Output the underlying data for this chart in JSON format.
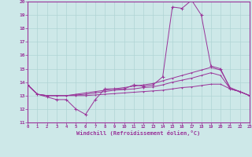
{
  "xlabel": "Windchill (Refroidissement éolien,°C)",
  "xlim": [
    0,
    23
  ],
  "ylim": [
    11,
    20
  ],
  "yticks": [
    11,
    12,
    13,
    14,
    15,
    16,
    17,
    18,
    19,
    20
  ],
  "xticks": [
    0,
    1,
    2,
    3,
    4,
    5,
    6,
    7,
    8,
    9,
    10,
    11,
    12,
    13,
    14,
    15,
    16,
    17,
    18,
    19,
    20,
    21,
    22,
    23
  ],
  "bg_color": "#cde8e8",
  "grid_color": "#b0d4d4",
  "line_color": "#993399",
  "line1_x": [
    0,
    1,
    2,
    3,
    4,
    5,
    6,
    7,
    8,
    9,
    10,
    11,
    12,
    13,
    14,
    15,
    16,
    17,
    18,
    19,
    20,
    21,
    22,
    23
  ],
  "line1_y": [
    13.8,
    13.1,
    12.9,
    12.7,
    12.7,
    12.0,
    11.6,
    12.7,
    13.5,
    13.5,
    13.5,
    13.8,
    13.7,
    13.8,
    14.4,
    19.6,
    19.5,
    20.1,
    19.0,
    15.2,
    15.0,
    13.5,
    13.3,
    13.0
  ],
  "line2_x": [
    0,
    1,
    2,
    3,
    4,
    5,
    6,
    7,
    8,
    9,
    10,
    11,
    12,
    13,
    14,
    15,
    16,
    17,
    18,
    19,
    20,
    21,
    22,
    23
  ],
  "line2_y": [
    13.8,
    13.1,
    13.0,
    13.0,
    13.0,
    13.1,
    13.2,
    13.3,
    13.4,
    13.5,
    13.6,
    13.7,
    13.8,
    13.9,
    14.1,
    14.3,
    14.5,
    14.7,
    14.9,
    15.1,
    14.9,
    13.6,
    13.3,
    13.0
  ],
  "line3_x": [
    0,
    1,
    2,
    3,
    4,
    5,
    6,
    7,
    8,
    9,
    10,
    11,
    12,
    13,
    14,
    15,
    16,
    17,
    18,
    19,
    20,
    21,
    22,
    23
  ],
  "line3_y": [
    13.8,
    13.1,
    13.0,
    13.0,
    13.0,
    13.05,
    13.1,
    13.2,
    13.3,
    13.4,
    13.45,
    13.5,
    13.6,
    13.65,
    13.8,
    14.0,
    14.15,
    14.3,
    14.5,
    14.7,
    14.5,
    13.5,
    13.3,
    13.0
  ],
  "line4_x": [
    0,
    1,
    2,
    3,
    4,
    5,
    6,
    7,
    8,
    9,
    10,
    11,
    12,
    13,
    14,
    15,
    16,
    17,
    18,
    19,
    20,
    21,
    22,
    23
  ],
  "line4_y": [
    13.8,
    13.1,
    13.0,
    13.0,
    13.0,
    13.0,
    13.0,
    13.05,
    13.1,
    13.15,
    13.2,
    13.25,
    13.3,
    13.35,
    13.4,
    13.5,
    13.6,
    13.65,
    13.75,
    13.85,
    13.85,
    13.5,
    13.3,
    13.0
  ]
}
